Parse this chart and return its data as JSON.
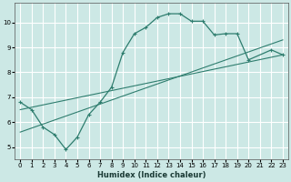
{
  "xlabel": "Humidex (Indice chaleur)",
  "xlim": [
    -0.5,
    23.5
  ],
  "ylim": [
    4.5,
    10.8
  ],
  "xticks": [
    0,
    1,
    2,
    3,
    4,
    5,
    6,
    7,
    8,
    9,
    10,
    11,
    12,
    13,
    14,
    15,
    16,
    17,
    18,
    19,
    20,
    21,
    22,
    23
  ],
  "yticks": [
    5,
    6,
    7,
    8,
    9,
    10
  ],
  "bg_color": "#cce8e5",
  "grid_color": "#ffffff",
  "line_color": "#2e7d6e",
  "series1_x": [
    0,
    1,
    2,
    3,
    4,
    5,
    6,
    7,
    8,
    9,
    10,
    11,
    12,
    13,
    14,
    15,
    16,
    17,
    18,
    19,
    20,
    22,
    23
  ],
  "series1_y": [
    6.8,
    6.5,
    5.8,
    5.5,
    4.9,
    5.4,
    6.3,
    6.8,
    7.4,
    8.8,
    9.55,
    9.8,
    10.2,
    10.35,
    10.35,
    10.05,
    10.05,
    9.5,
    9.55,
    9.55,
    8.5,
    8.9,
    8.7
  ],
  "trend1_x": [
    0,
    23
  ],
  "trend1_y": [
    5.6,
    9.3
  ],
  "trend2_x": [
    0,
    23
  ],
  "trend2_y": [
    6.5,
    8.7
  ]
}
